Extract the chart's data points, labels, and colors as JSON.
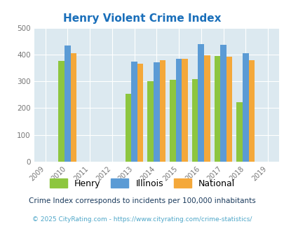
{
  "title": "Henry Violent Crime Index",
  "years": [
    2009,
    2010,
    2011,
    2012,
    2013,
    2014,
    2015,
    2016,
    2017,
    2018,
    2019
  ],
  "data_years": [
    2010,
    2013,
    2014,
    2015,
    2016,
    2017,
    2018
  ],
  "henry": [
    375,
    253,
    300,
    305,
    307,
    394,
    222
  ],
  "illinois": [
    433,
    373,
    370,
    383,
    438,
    437,
    405
  ],
  "national": [
    404,
    367,
    378,
    383,
    397,
    393,
    379
  ],
  "henry_color": "#8dc63f",
  "illinois_color": "#5b9bd5",
  "national_color": "#f4a83a",
  "bg_color": "#dce9f0",
  "ylim": [
    0,
    500
  ],
  "yticks": [
    0,
    100,
    200,
    300,
    400,
    500
  ],
  "legend_labels": [
    "Henry",
    "Illinois",
    "National"
  ],
  "footnote1": "Crime Index corresponds to incidents per 100,000 inhabitants",
  "footnote2": "© 2025 CityRating.com - https://www.cityrating.com/crime-statistics/",
  "bar_width": 0.27,
  "title_color": "#1a6fba",
  "footnote1_color": "#1a3a5c",
  "footnote2_color": "#4da6c8"
}
